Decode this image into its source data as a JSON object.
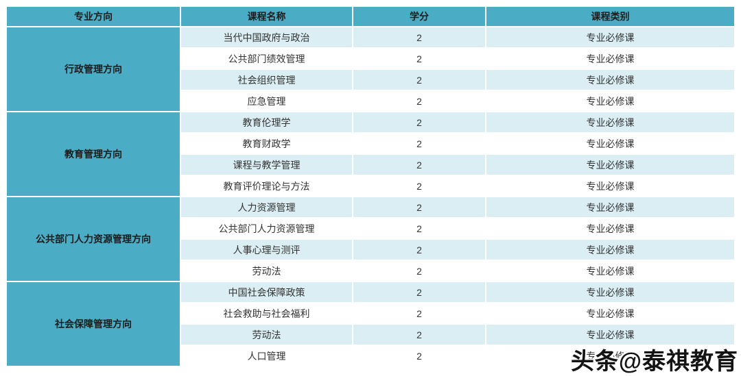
{
  "colors": {
    "header_bg": "#4aacc5",
    "direction_bg": "#4aacc5",
    "stripe_bg": "#daeef3",
    "row_bg": "#ffffff",
    "grid_line": "#ffffff",
    "text": "#333333"
  },
  "table": {
    "headers": [
      "专业方向",
      "课程名称",
      "学分",
      "课程类别"
    ],
    "groups": [
      {
        "direction": "行政管理方向",
        "courses": [
          {
            "name": "当代中国政府与政治",
            "credits": "2",
            "category": "专业必修课"
          },
          {
            "name": "公共部门绩效管理",
            "credits": "2",
            "category": "专业必修课"
          },
          {
            "name": "社会组织管理",
            "credits": "2",
            "category": "专业必修课"
          },
          {
            "name": "应急管理",
            "credits": "2",
            "category": "专业必修课"
          }
        ]
      },
      {
        "direction": "教育管理方向",
        "courses": [
          {
            "name": "教育伦理学",
            "credits": "2",
            "category": "专业必修课"
          },
          {
            "name": "教育财政学",
            "credits": "2",
            "category": "专业必修课"
          },
          {
            "name": "课程与教学管理",
            "credits": "2",
            "category": "专业必修课"
          },
          {
            "name": "教育评价理论与方法",
            "credits": "2",
            "category": "专业必修课"
          }
        ]
      },
      {
        "direction": "公共部门人力资源管理方向",
        "courses": [
          {
            "name": "人力资源管理",
            "credits": "2",
            "category": "专业必修课"
          },
          {
            "name": "公共部门人力资源管理",
            "credits": "2",
            "category": "专业必修课"
          },
          {
            "name": "人事心理与测评",
            "credits": "2",
            "category": "专业必修课"
          },
          {
            "name": "劳动法",
            "credits": "2",
            "category": "专业必修课"
          }
        ]
      },
      {
        "direction": "社会保障管理方向",
        "courses": [
          {
            "name": "中国社会保障政策",
            "credits": "2",
            "category": "专业必修课"
          },
          {
            "name": "社会救助与社会福利",
            "credits": "2",
            "category": "专业必修课"
          },
          {
            "name": "劳动法",
            "credits": "2",
            "category": "专业必修课"
          },
          {
            "name": "人口管理",
            "credits": "2",
            "category": "专业必修课"
          }
        ]
      }
    ]
  },
  "watermark": {
    "text": "头条@泰祺教育"
  }
}
